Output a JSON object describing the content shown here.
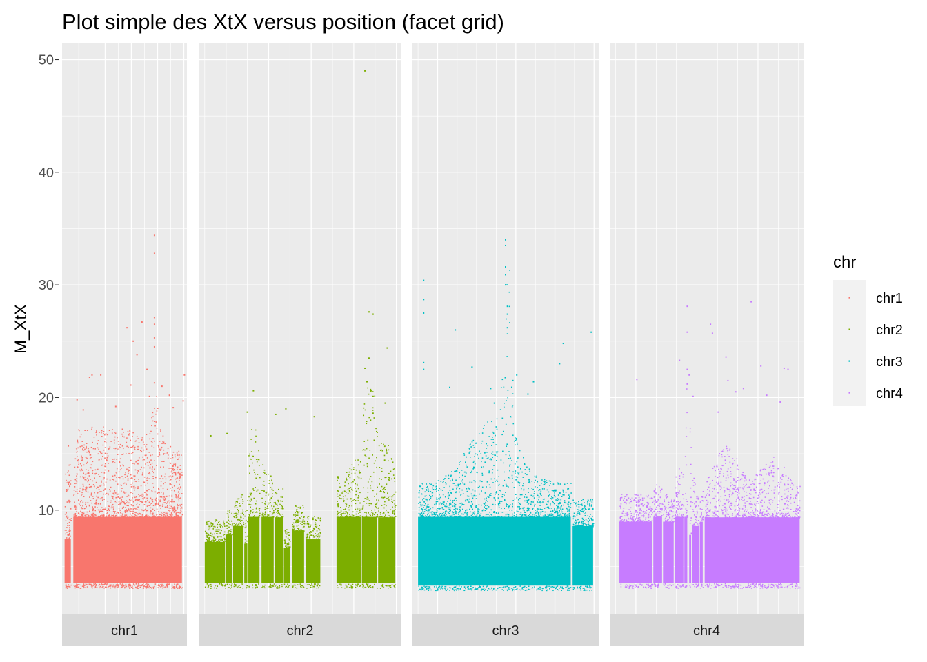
{
  "chart_data": {
    "type": "scatter",
    "title": "Plot simple des XtX versus position (facet grid)",
    "xlabel": "",
    "ylabel": "M_XtX",
    "y_ticks": [
      10,
      20,
      30,
      40,
      50
    ],
    "ylim": [
      0.8,
      51.5
    ],
    "facet_by": "chr",
    "legend": {
      "title": "chr",
      "position": "right"
    },
    "background": "#ebebeb",
    "grid": true,
    "series": [
      {
        "name": "chr1",
        "strip_label": "chr1",
        "color": "#F8766D",
        "xlim": [
          0,
          100
        ],
        "baseline_min": 3.2,
        "segments": [
          [
            2,
            7,
            9.5
          ],
          [
            9,
            96,
            12.5
          ]
        ],
        "bulge": [
          [
            30,
            60,
            5
          ],
          [
            75,
            3,
            4
          ]
        ],
        "outliers": [
          [
            74,
            34.4
          ],
          [
            74,
            32.8
          ],
          [
            74,
            27.1
          ],
          [
            74,
            26.5
          ],
          [
            52,
            26.2
          ],
          [
            64,
            26.7
          ],
          [
            74,
            25.3
          ],
          [
            57,
            25
          ],
          [
            74,
            24.5
          ],
          [
            60,
            23.8
          ],
          [
            68,
            22.5
          ],
          [
            24,
            22
          ],
          [
            31,
            22
          ],
          [
            98,
            22
          ],
          [
            22,
            21.8
          ],
          [
            74,
            21.3
          ],
          [
            55,
            21.1
          ],
          [
            80,
            21
          ],
          [
            86,
            20.2
          ],
          [
            12,
            19.8
          ],
          [
            97,
            19.7
          ],
          [
            70,
            20.1
          ],
          [
            43,
            19.2
          ],
          [
            17,
            18.9
          ],
          [
            89,
            19.1
          ],
          [
            5,
            15.7
          ]
        ]
      },
      {
        "name": "chr2",
        "strip_label": "chr2",
        "color": "#7CAE00",
        "xlim": [
          0,
          100
        ],
        "baseline_min": 3.2,
        "segments": [
          [
            3,
            13,
            9.2
          ],
          [
            13.5,
            16.5,
            10
          ],
          [
            17,
            22,
            11
          ],
          [
            22.5,
            24,
            9
          ],
          [
            24.5,
            30,
            13.5
          ],
          [
            31,
            37,
            13
          ],
          [
            37.5,
            41.5,
            12
          ],
          [
            42,
            45,
            8.5
          ],
          [
            46,
            52,
            10.5
          ],
          [
            53,
            60,
            9.5
          ],
          [
            68,
            80,
            13
          ],
          [
            80.5,
            88,
            16
          ],
          [
            88.5,
            97,
            12
          ]
        ],
        "bulge": [
          [
            27,
            3,
            4
          ],
          [
            84,
            5,
            5
          ],
          [
            93,
            3,
            3
          ]
        ],
        "outliers": [
          [
            82,
            49
          ],
          [
            84,
            27.6
          ],
          [
            86,
            27.4
          ],
          [
            93,
            24.4
          ],
          [
            84,
            23.5
          ],
          [
            82,
            22.6
          ],
          [
            83,
            21.4
          ],
          [
            85,
            20.6
          ],
          [
            86,
            20.1
          ],
          [
            27,
            20.6
          ],
          [
            24,
            18.7
          ],
          [
            43,
            19
          ],
          [
            38,
            18.5
          ],
          [
            57,
            18.3
          ],
          [
            92,
            19.5
          ],
          [
            6,
            16.6
          ],
          [
            14,
            16.8
          ],
          [
            86,
            18.6
          ]
        ]
      },
      {
        "name": "chr3",
        "strip_label": "chr3",
        "color": "#00BFC4",
        "xlim": [
          0,
          100
        ],
        "baseline_min": 3,
        "segments": [
          [
            3,
            85,
            12.5
          ],
          [
            86,
            97,
            11
          ]
        ],
        "bulge": [
          [
            51,
            2,
            16
          ],
          [
            48,
            10,
            4
          ],
          [
            36,
            10,
            3
          ]
        ],
        "outliers": [
          [
            50,
            34
          ],
          [
            50,
            33.5
          ],
          [
            50,
            31.6
          ],
          [
            50,
            30.9
          ],
          [
            50,
            30
          ],
          [
            6,
            30.4
          ],
          [
            6,
            28.7
          ],
          [
            6,
            27.5
          ],
          [
            51,
            28.1
          ],
          [
            51,
            27.4
          ],
          [
            51,
            26.2
          ],
          [
            23,
            26
          ],
          [
            81,
            24.8
          ],
          [
            96,
            25.8
          ],
          [
            6,
            23.1
          ],
          [
            6,
            22.5
          ],
          [
            32,
            22.7
          ],
          [
            79,
            23
          ],
          [
            56,
            22
          ],
          [
            65,
            21.4
          ],
          [
            20,
            20.9
          ],
          [
            42,
            20.8
          ],
          [
            62,
            20.3
          ],
          [
            44,
            19.5
          ]
        ]
      },
      {
        "name": "chr4",
        "strip_label": "chr4",
        "color": "#C77CFF",
        "xlim": [
          0,
          100
        ],
        "baseline_min": 3.2,
        "segments": [
          [
            5,
            22,
            11.5
          ],
          [
            22.5,
            27,
            12.5
          ],
          [
            27.5,
            33,
            11.5
          ],
          [
            33.5,
            38,
            13
          ],
          [
            38.5,
            40,
            13
          ],
          [
            41,
            42,
            10
          ],
          [
            42.5,
            46,
            11
          ],
          [
            46.5,
            48,
            11.5
          ],
          [
            49,
            98,
            12
          ]
        ],
        "bulge": [
          [
            40,
            2,
            9
          ],
          [
            60,
            6,
            4
          ],
          [
            84,
            6,
            3
          ]
        ],
        "outliers": [
          [
            40,
            28.1
          ],
          [
            73,
            28.5
          ],
          [
            52,
            26.5
          ],
          [
            53,
            25.7
          ],
          [
            40,
            25.8
          ],
          [
            36,
            23.3
          ],
          [
            60,
            23.6
          ],
          [
            40,
            22.5
          ],
          [
            41,
            22
          ],
          [
            78,
            22.8
          ],
          [
            90,
            22.6
          ],
          [
            92,
            22.5
          ],
          [
            14,
            21.6
          ],
          [
            61,
            21.5
          ],
          [
            65,
            20.5
          ],
          [
            40,
            21.2
          ],
          [
            43,
            20.1
          ],
          [
            69,
            20.8
          ],
          [
            81,
            20.2
          ],
          [
            88,
            19.6
          ],
          [
            56,
            18.7
          ]
        ]
      }
    ]
  }
}
